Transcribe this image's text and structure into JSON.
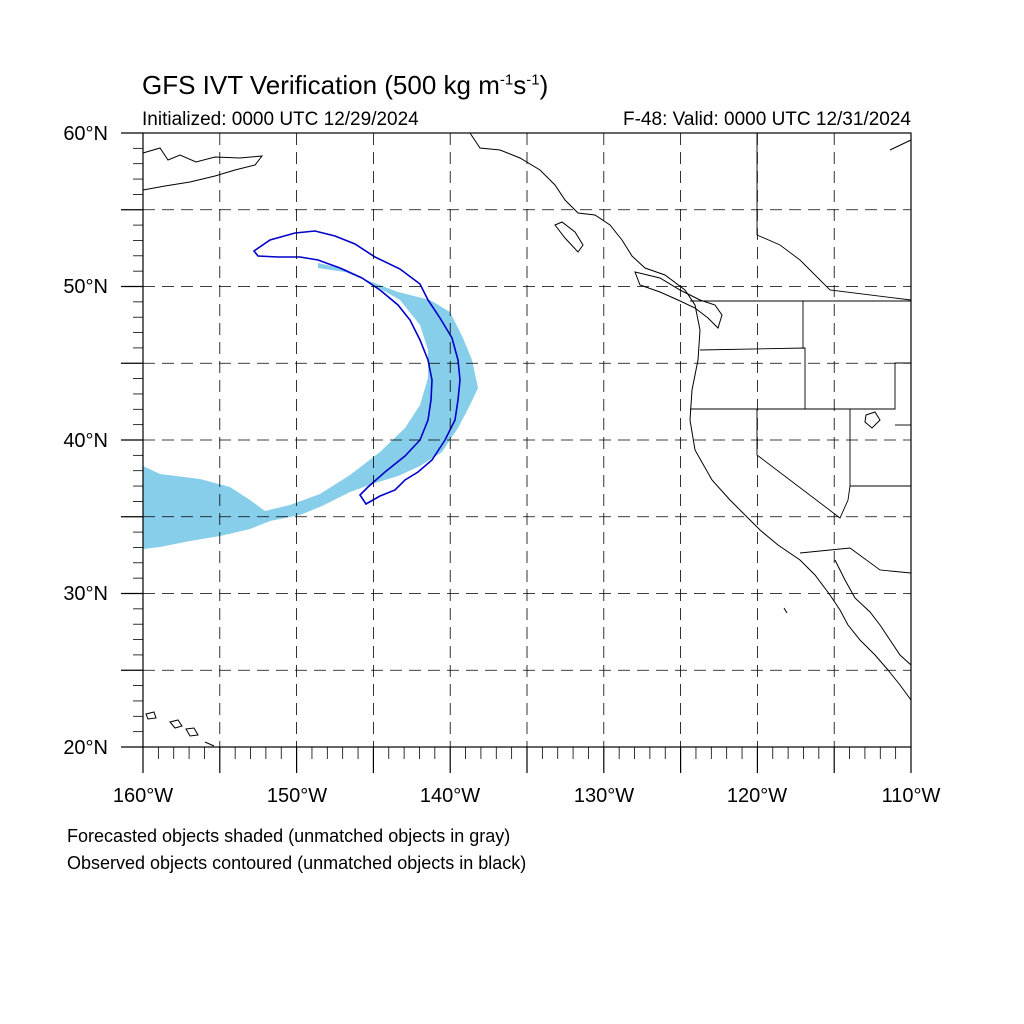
{
  "title": {
    "main": "GFS IVT Verification (500 kg m",
    "exp1": "-1",
    "mid": "s",
    "exp2": "-1",
    "end": ")"
  },
  "initialized": "Initialized: 0000 UTC 12/29/2024",
  "valid": "F-48: Valid: 0000 UTC 12/31/2024",
  "map": {
    "lon_range": [
      -160,
      -110
    ],
    "lat_range": [
      20,
      60
    ],
    "lat_labels": [
      "20°N",
      "30°N",
      "40°N",
      "50°N",
      "60°N"
    ],
    "lon_labels": [
      "160°W",
      "150°W",
      "140°W",
      "130°W",
      "120°W",
      "110°W"
    ],
    "gridlines": "dashed every 5°",
    "forecast_color": "#87ceeb",
    "observed_color": "#0000cc"
  },
  "notes": {
    "line1": "Forecasted objects shaded (unmatched objects in gray)",
    "line2": "Observed objects contoured (unmatched objects in black)"
  }
}
